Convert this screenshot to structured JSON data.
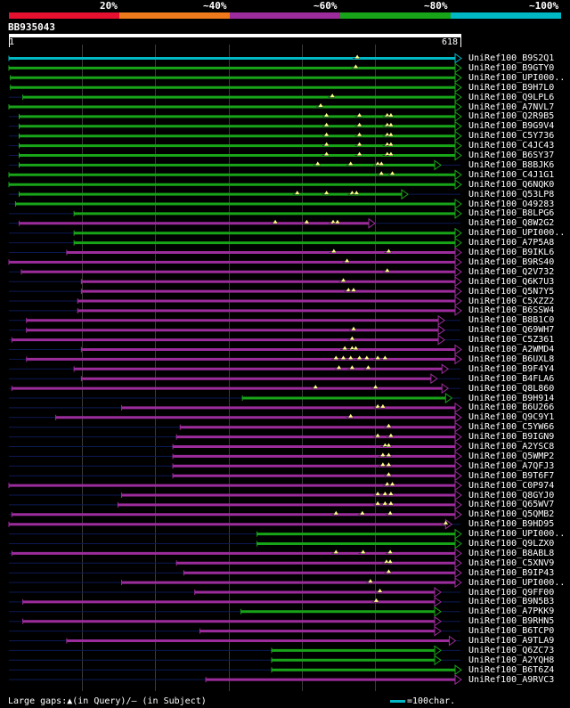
{
  "legend": {
    "labels": [
      "20%",
      "~40%",
      "~60%",
      "~80%",
      "~100%"
    ],
    "colors": [
      "#e8102f",
      "#ee7a1c",
      "#9c2c9c",
      "#18a418",
      "#00b7c4"
    ]
  },
  "query": {
    "id": "BB935043",
    "start": "1",
    "end": "618"
  },
  "hits": [
    {
      "label": "UniRef100_B9S2Q1",
      "s": 1,
      "e": 618,
      "c": 4,
      "g": [
        477
      ]
    },
    {
      "label": "UniRef100_B9GTY0",
      "s": 1,
      "e": 618,
      "c": 3,
      "g": [
        475
      ]
    },
    {
      "label": "UniRef100_UPI000..",
      "s": 3,
      "e": 618,
      "c": 3,
      "g": []
    },
    {
      "label": "UniRef100_B9H7L0",
      "s": 3,
      "e": 618,
      "c": 3,
      "g": []
    },
    {
      "label": "UniRef100_Q9LPL6",
      "s": 20,
      "e": 618,
      "c": 3,
      "g": [
        443
      ]
    },
    {
      "label": "UniRef100_A7NVL7",
      "s": 1,
      "e": 618,
      "c": 3,
      "g": [
        427
      ]
    },
    {
      "label": "UniRef100_Q2R9B5",
      "s": 15,
      "e": 618,
      "c": 3,
      "g": [
        435,
        480,
        518,
        523
      ]
    },
    {
      "label": "UniRef100_B9G9V4",
      "s": 15,
      "e": 618,
      "c": 3,
      "g": [
        435,
        480,
        518,
        523
      ]
    },
    {
      "label": "UniRef100_C5Y736",
      "s": 15,
      "e": 618,
      "c": 3,
      "g": [
        435,
        480,
        518,
        523
      ]
    },
    {
      "label": "UniRef100_C4JC43",
      "s": 15,
      "e": 618,
      "c": 3,
      "g": [
        435,
        480,
        518,
        523
      ]
    },
    {
      "label": "UniRef100_B6SY37",
      "s": 15,
      "e": 618,
      "c": 3,
      "g": [
        435,
        480,
        518,
        523
      ]
    },
    {
      "label": "UniRef100_B8BJK6",
      "s": 15,
      "e": 590,
      "c": 3,
      "g": [
        423,
        468,
        505,
        510
      ]
    },
    {
      "label": "UniRef100_C4J1G1",
      "s": 1,
      "e": 618,
      "c": 3,
      "g": [
        510,
        525
      ]
    },
    {
      "label": "UniRef100_Q6NQK0",
      "s": 1,
      "e": 618,
      "c": 3,
      "g": []
    },
    {
      "label": "UniRef100_Q53LP8",
      "s": 15,
      "e": 545,
      "c": 3,
      "g": [
        395,
        435,
        470,
        476
      ]
    },
    {
      "label": "UniRef100_O49283",
      "s": 10,
      "e": 618,
      "c": 3,
      "g": []
    },
    {
      "label": "UniRef100_B8LPG6",
      "s": 90,
      "e": 618,
      "c": 3,
      "g": []
    },
    {
      "label": "UniRef100_Q8W2G2",
      "s": 15,
      "e": 500,
      "c": 2,
      "g": [
        365,
        408,
        444,
        450
      ]
    },
    {
      "label": "UniRef100_UPI000..",
      "s": 90,
      "e": 618,
      "c": 3,
      "g": []
    },
    {
      "label": "UniRef100_A7P5A8",
      "s": 90,
      "e": 618,
      "c": 3,
      "g": []
    },
    {
      "label": "UniRef100_B9IKL6",
      "s": 80,
      "e": 618,
      "c": 2,
      "g": [
        445,
        520
      ]
    },
    {
      "label": "UniRef100_B9RS40",
      "s": 1,
      "e": 618,
      "c": 2,
      "g": [
        463
      ]
    },
    {
      "label": "UniRef100_Q2V732",
      "s": 18,
      "e": 618,
      "c": 2,
      "g": [
        518
      ]
    },
    {
      "label": "UniRef100_Q6K7U3",
      "s": 100,
      "e": 618,
      "c": 2,
      "g": [
        458
      ]
    },
    {
      "label": "UniRef100_Q5N7Y5",
      "s": 100,
      "e": 618,
      "c": 2,
      "g": [
        465,
        472
      ]
    },
    {
      "label": "UniRef100_C5XZZ2",
      "s": 95,
      "e": 618,
      "c": 2,
      "g": []
    },
    {
      "label": "UniRef100_B6SSW4",
      "s": 95,
      "e": 618,
      "c": 2,
      "g": []
    },
    {
      "label": "UniRef100_B8B1C0",
      "s": 25,
      "e": 595,
      "c": 2,
      "g": []
    },
    {
      "label": "UniRef100_Q69WH7",
      "s": 25,
      "e": 595,
      "c": 2,
      "g": [
        472
      ]
    },
    {
      "label": "UniRef100_C5Z361",
      "s": 5,
      "e": 595,
      "c": 2,
      "g": [
        470
      ]
    },
    {
      "label": "UniRef100_A2WMD4",
      "s": 100,
      "e": 618,
      "c": 2,
      "g": [
        460,
        470,
        475
      ]
    },
    {
      "label": "UniRef100_B6UXL8",
      "s": 25,
      "e": 618,
      "c": 2,
      "g": [
        448,
        458,
        468,
        480,
        490,
        505,
        515
      ]
    },
    {
      "label": "UniRef100_B9F4Y4",
      "s": 90,
      "e": 600,
      "c": 2,
      "g": [
        452,
        470,
        492
      ]
    },
    {
      "label": "UniRef100_B4FLA6",
      "s": 100,
      "e": 585,
      "c": 2,
      "g": []
    },
    {
      "label": "UniRef100_Q8L860",
      "s": 5,
      "e": 600,
      "c": 2,
      "g": [
        420,
        502
      ]
    },
    {
      "label": "UniRef100_B9H914",
      "s": 320,
      "e": 605,
      "c": 3,
      "g": []
    },
    {
      "label": "UniRef100_B6U266",
      "s": 155,
      "e": 618,
      "c": 2,
      "g": [
        505,
        512
      ]
    },
    {
      "label": "UniRef100_Q9C9Y1",
      "s": 65,
      "e": 618,
      "c": 2,
      "g": [
        468
      ]
    },
    {
      "label": "UniRef100_C5YW66",
      "s": 235,
      "e": 618,
      "c": 2,
      "g": [
        520
      ]
    },
    {
      "label": "UniRef100_B9IGN9",
      "s": 230,
      "e": 618,
      "c": 2,
      "g": [
        505,
        523
      ]
    },
    {
      "label": "UniRef100_A2YSC8",
      "s": 225,
      "e": 618,
      "c": 2,
      "g": [
        515,
        520
      ]
    },
    {
      "label": "UniRef100_Q5WMP2",
      "s": 225,
      "e": 618,
      "c": 2,
      "g": [
        512,
        520
      ]
    },
    {
      "label": "UniRef100_A7QFJ3",
      "s": 225,
      "e": 618,
      "c": 2,
      "g": [
        512,
        520
      ]
    },
    {
      "label": "UniRef100_B9T6F7",
      "s": 225,
      "e": 618,
      "c": 2,
      "g": [
        520
      ]
    },
    {
      "label": "UniRef100_C0P974",
      "s": 1,
      "e": 618,
      "c": 2,
      "g": [
        518,
        525
      ]
    },
    {
      "label": "UniRef100_Q8GYJ0",
      "s": 155,
      "e": 618,
      "c": 2,
      "g": [
        505,
        515,
        523
      ]
    },
    {
      "label": "UniRef100_Q65WV7",
      "s": 150,
      "e": 618,
      "c": 2,
      "g": [
        505,
        515,
        523
      ]
    },
    {
      "label": "UniRef100_Q5QMB2",
      "s": 5,
      "e": 618,
      "c": 2,
      "g": [
        448,
        484,
        522
      ]
    },
    {
      "label": "UniRef100_B9HD95",
      "s": 1,
      "e": 605,
      "c": 2,
      "g": [
        598
      ]
    },
    {
      "label": "UniRef100_UPI000..",
      "s": 340,
      "e": 618,
      "c": 3,
      "g": []
    },
    {
      "label": "UniRef100_Q9LZX0",
      "s": 340,
      "e": 618,
      "c": 3,
      "g": []
    },
    {
      "label": "UniRef100_B8ABL8",
      "s": 5,
      "e": 618,
      "c": 2,
      "g": [
        448,
        485,
        522
      ]
    },
    {
      "label": "UniRef100_C5XNV9",
      "s": 230,
      "e": 618,
      "c": 2,
      "g": [
        517,
        522
      ]
    },
    {
      "label": "UniRef100_B9IP43",
      "s": 240,
      "e": 618,
      "c": 2,
      "g": [
        520
      ]
    },
    {
      "label": "UniRef100_UPI000..",
      "s": 155,
      "e": 618,
      "c": 2,
      "g": [
        495
      ]
    },
    {
      "label": "UniRef100_Q9FF00",
      "s": 255,
      "e": 590,
      "c": 2,
      "g": [
        508
      ]
    },
    {
      "label": "UniRef100_B9N5B3",
      "s": 20,
      "e": 590,
      "c": 2,
      "g": [
        503
      ]
    },
    {
      "label": "UniRef100_A7PKK9",
      "s": 318,
      "e": 590,
      "c": 3,
      "g": []
    },
    {
      "label": "UniRef100_B9RHN5",
      "s": 20,
      "e": 590,
      "c": 2,
      "g": []
    },
    {
      "label": "UniRef100_B6TCP0",
      "s": 262,
      "e": 590,
      "c": 2,
      "g": []
    },
    {
      "label": "UniRef100_A9TLA9",
      "s": 80,
      "e": 610,
      "c": 2,
      "g": []
    },
    {
      "label": "UniRef100_Q6ZC73",
      "s": 360,
      "e": 590,
      "c": 3,
      "g": []
    },
    {
      "label": "UniRef100_A2YQH8",
      "s": 360,
      "e": 590,
      "c": 3,
      "g": []
    },
    {
      "label": "UniRef100_B6T6Z4",
      "s": 360,
      "e": 618,
      "c": 3,
      "g": []
    },
    {
      "label": "UniRef100_A9RVC3",
      "s": 270,
      "e": 618,
      "c": 2,
      "g": []
    }
  ],
  "footer": {
    "legend_text": "Large gaps:▲(in Query)/‒ (in Subject)",
    "scale_text": "=100char."
  }
}
